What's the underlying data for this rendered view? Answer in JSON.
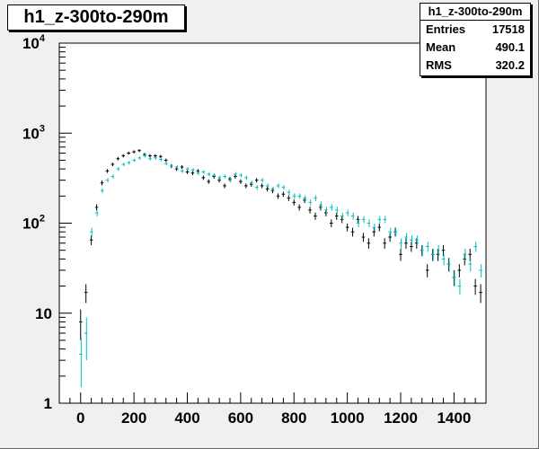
{
  "chart_data": {
    "type": "scatter",
    "histogram_title": "h1_z-300to-290m",
    "stats": {
      "title": "h1_z-300to-290m",
      "rows": [
        {
          "label": "Entries",
          "value": "17518"
        },
        {
          "label": "Mean",
          "value": "490.1"
        },
        {
          "label": "RMS",
          "value": "320.2"
        }
      ]
    },
    "x_axis": {
      "range": [
        -80,
        1520
      ],
      "ticks": [
        0,
        200,
        400,
        600,
        800,
        1000,
        1200,
        1400
      ],
      "labels": [
        "0",
        "200",
        "400",
        "600",
        "800",
        "1000",
        "1200",
        "1400"
      ]
    },
    "y_axis": {
      "scale": "log",
      "range": [
        1,
        10000
      ],
      "ticks": [
        {
          "value": 1,
          "base": "1",
          "exp": ""
        },
        {
          "value": 10,
          "base": "10",
          "exp": ""
        },
        {
          "value": 100,
          "base": "10",
          "exp": "2"
        },
        {
          "value": 1000,
          "base": "10",
          "exp": "3"
        },
        {
          "value": 10000,
          "base": "10",
          "exp": "4"
        }
      ]
    },
    "bin_width": 20,
    "series": [
      {
        "color": "#000000",
        "x": [
          0,
          20,
          40,
          60,
          80,
          100,
          120,
          140,
          160,
          180,
          200,
          220,
          240,
          260,
          280,
          300,
          320,
          340,
          360,
          380,
          400,
          420,
          440,
          460,
          480,
          500,
          520,
          540,
          560,
          580,
          600,
          620,
          640,
          660,
          680,
          700,
          720,
          740,
          760,
          780,
          800,
          820,
          840,
          860,
          880,
          900,
          920,
          940,
          960,
          980,
          1000,
          1020,
          1040,
          1060,
          1080,
          1100,
          1120,
          1140,
          1160,
          1180,
          1200,
          1220,
          1240,
          1260,
          1280,
          1300,
          1320,
          1340,
          1360,
          1380,
          1400,
          1420,
          1440,
          1460,
          1480,
          1500
        ],
        "y": [
          8,
          17,
          65,
          150,
          280,
          380,
          450,
          520,
          560,
          600,
          620,
          640,
          580,
          560,
          560,
          550,
          500,
          430,
          400,
          420,
          370,
          360,
          380,
          320,
          290,
          330,
          300,
          260,
          310,
          330,
          290,
          260,
          270,
          300,
          260,
          240,
          230,
          200,
          210,
          190,
          170,
          150,
          180,
          140,
          120,
          150,
          130,
          100,
          120,
          110,
          90,
          80,
          110,
          70,
          60,
          80,
          90,
          60,
          70,
          80,
          45,
          60,
          55,
          60,
          50,
          30,
          45,
          45,
          50,
          35,
          25,
          30,
          40,
          45,
          20,
          17
        ],
        "err": [
          3,
          4,
          8,
          12,
          17,
          19,
          21,
          23,
          24,
          24,
          25,
          25,
          24,
          24,
          24,
          23,
          22,
          21,
          20,
          20,
          19,
          19,
          19,
          18,
          17,
          18,
          17,
          16,
          18,
          18,
          17,
          16,
          16,
          17,
          16,
          15,
          15,
          14,
          14,
          14,
          13,
          12,
          13,
          12,
          11,
          12,
          11,
          10,
          11,
          10,
          9,
          9,
          10,
          8,
          8,
          9,
          9,
          8,
          8,
          9,
          7,
          8,
          7,
          8,
          7,
          5,
          7,
          7,
          7,
          6,
          5,
          5,
          6,
          7,
          4,
          4
        ]
      },
      {
        "color": "#00c0c0",
        "x": [
          0,
          20,
          40,
          60,
          80,
          100,
          120,
          140,
          160,
          180,
          200,
          220,
          240,
          260,
          280,
          300,
          320,
          340,
          360,
          380,
          400,
          420,
          440,
          460,
          480,
          500,
          520,
          540,
          560,
          580,
          600,
          620,
          640,
          660,
          680,
          700,
          720,
          740,
          760,
          780,
          800,
          820,
          840,
          860,
          880,
          900,
          920,
          940,
          960,
          980,
          1000,
          1020,
          1040,
          1060,
          1080,
          1100,
          1120,
          1140,
          1160,
          1180,
          1200,
          1220,
          1240,
          1260,
          1280,
          1300,
          1320,
          1340,
          1360,
          1380,
          1400,
          1420,
          1440,
          1460,
          1480,
          1500
        ],
        "y": [
          3.5,
          6,
          80,
          130,
          230,
          300,
          330,
          400,
          450,
          470,
          500,
          530,
          560,
          520,
          530,
          510,
          460,
          430,
          420,
          380,
          400,
          390,
          360,
          370,
          350,
          340,
          320,
          330,
          300,
          350,
          340,
          320,
          280,
          250,
          300,
          260,
          240,
          260,
          250,
          220,
          200,
          200,
          190,
          170,
          190,
          160,
          140,
          150,
          140,
          120,
          130,
          120,
          100,
          110,
          100,
          90,
          110,
          110,
          80,
          80,
          60,
          70,
          65,
          65,
          50,
          55,
          45,
          50,
          40,
          35,
          25,
          20,
          45,
          35,
          55,
          30
        ],
        "err": [
          2,
          3,
          9,
          11,
          15,
          17,
          18,
          20,
          21,
          22,
          22,
          23,
          24,
          23,
          23,
          23,
          21,
          21,
          20,
          19,
          20,
          20,
          19,
          19,
          19,
          18,
          18,
          18,
          17,
          19,
          18,
          18,
          17,
          16,
          17,
          16,
          15,
          16,
          16,
          15,
          14,
          14,
          14,
          13,
          14,
          13,
          12,
          12,
          12,
          11,
          11,
          11,
          10,
          10,
          10,
          9,
          10,
          10,
          9,
          9,
          8,
          8,
          8,
          8,
          7,
          7,
          7,
          7,
          6,
          6,
          5,
          4,
          7,
          6,
          7,
          5
        ]
      }
    ],
    "grid": false,
    "legend": "none"
  }
}
